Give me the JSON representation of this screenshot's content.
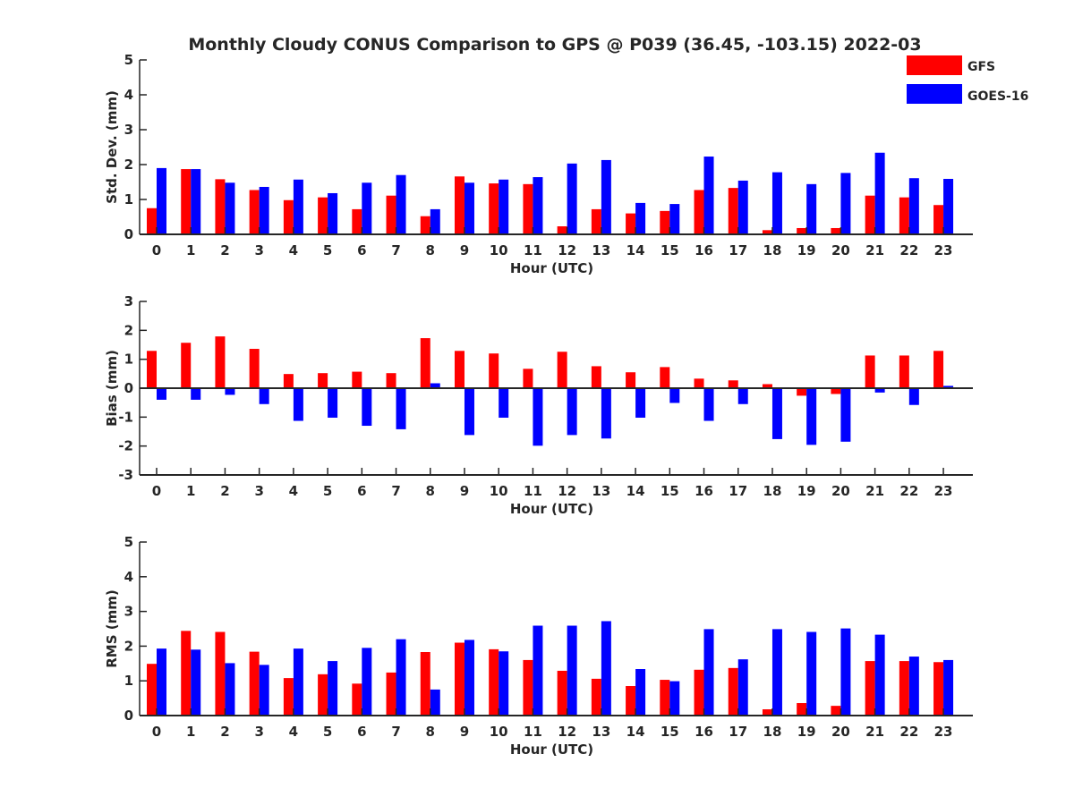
{
  "title": "Monthly Cloudy CONUS Comparison to GPS @ P039 (36.45, -103.15) 2022-03",
  "legend": {
    "placement": "top-right",
    "entries": [
      "GFS",
      "GOES-16"
    ]
  },
  "colors": {
    "GFS": "#ff0000",
    "GOES-16": "#0000ff",
    "axis": "#262626"
  },
  "chart_data": [
    {
      "type": "bar",
      "xlabel": "Hour (UTC)",
      "ylabel": "Std. Dev. (mm)",
      "ylim": [
        0,
        5
      ],
      "yticks": [
        0,
        1,
        2,
        3,
        4,
        5
      ],
      "categories": [
        "0",
        "1",
        "2",
        "3",
        "4",
        "5",
        "6",
        "7",
        "8",
        "9",
        "10",
        "11",
        "12",
        "13",
        "14",
        "15",
        "16",
        "17",
        "18",
        "19",
        "20",
        "21",
        "22",
        "23"
      ],
      "series": [
        {
          "name": "GFS",
          "values": [
            0.75,
            1.87,
            1.58,
            1.27,
            0.98,
            1.06,
            0.72,
            1.11,
            0.52,
            1.66,
            1.46,
            1.44,
            0.23,
            0.72,
            0.6,
            0.67,
            1.27,
            1.33,
            0.12,
            0.18,
            0.18,
            1.11,
            1.06,
            0.84
          ]
        },
        {
          "name": "GOES-16",
          "values": [
            1.9,
            1.87,
            1.48,
            1.36,
            1.57,
            1.18,
            1.48,
            1.7,
            0.72,
            1.48,
            1.57,
            1.64,
            2.03,
            2.13,
            0.9,
            0.87,
            2.23,
            1.54,
            1.78,
            1.44,
            1.76,
            2.34,
            1.61,
            1.59
          ]
        }
      ]
    },
    {
      "type": "bar",
      "xlabel": "Hour (UTC)",
      "ylabel": "Bias (mm)",
      "ylim": [
        -3,
        3
      ],
      "yticks": [
        -3,
        -2,
        -1,
        0,
        1,
        2,
        3
      ],
      "zero_line": true,
      "categories": [
        "0",
        "1",
        "2",
        "3",
        "4",
        "5",
        "6",
        "7",
        "8",
        "9",
        "10",
        "11",
        "12",
        "13",
        "14",
        "15",
        "16",
        "17",
        "18",
        "19",
        "20",
        "21",
        "22",
        "23"
      ],
      "series": [
        {
          "name": "GFS",
          "values": [
            1.29,
            1.57,
            1.79,
            1.36,
            0.49,
            0.52,
            0.57,
            0.52,
            1.73,
            1.29,
            1.2,
            0.67,
            1.26,
            0.76,
            0.55,
            0.73,
            0.33,
            0.27,
            0.14,
            -0.26,
            -0.2,
            1.13,
            1.13,
            1.29
          ]
        },
        {
          "name": "GOES-16",
          "values": [
            -0.4,
            -0.4,
            -0.23,
            -0.55,
            -1.13,
            -1.02,
            -1.3,
            -1.42,
            0.17,
            -1.62,
            -1.02,
            -1.99,
            -1.62,
            -1.74,
            -1.02,
            -0.51,
            -1.13,
            -0.55,
            -1.76,
            -1.96,
            -1.85,
            -0.15,
            -0.58,
            0.08
          ]
        }
      ]
    },
    {
      "type": "bar",
      "xlabel": "Hour (UTC)",
      "ylabel": "RMS (mm)",
      "ylim": [
        0,
        5
      ],
      "yticks": [
        0,
        1,
        2,
        3,
        4,
        5
      ],
      "categories": [
        "0",
        "1",
        "2",
        "3",
        "4",
        "5",
        "6",
        "7",
        "8",
        "9",
        "10",
        "11",
        "12",
        "13",
        "14",
        "15",
        "16",
        "17",
        "18",
        "19",
        "20",
        "21",
        "22",
        "23"
      ],
      "series": [
        {
          "name": "GFS",
          "values": [
            1.49,
            2.44,
            2.41,
            1.84,
            1.08,
            1.19,
            0.92,
            1.24,
            1.83,
            2.1,
            1.91,
            1.6,
            1.29,
            1.06,
            0.85,
            1.03,
            1.32,
            1.37,
            0.18,
            0.36,
            0.28,
            1.57,
            1.57,
            1.54
          ]
        },
        {
          "name": "GOES-16",
          "values": [
            1.93,
            1.9,
            1.51,
            1.46,
            1.93,
            1.57,
            1.95,
            2.2,
            0.75,
            2.18,
            1.85,
            2.59,
            2.59,
            2.72,
            1.34,
            0.99,
            2.49,
            1.62,
            2.49,
            2.41,
            2.51,
            2.33,
            1.7,
            1.6
          ]
        }
      ]
    }
  ]
}
